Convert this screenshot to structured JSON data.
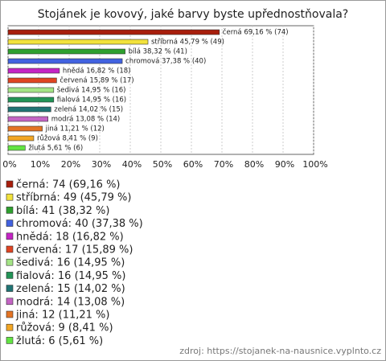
{
  "chart_data": {
    "type": "bar",
    "orientation": "horizontal",
    "title": "Stojánek je kovový, jaké barvy byste upřednostňovala?",
    "categories": [
      "černá",
      "stříbrná",
      "bílá",
      "chromová",
      "hnědá",
      "červená",
      "šedivá",
      "fialová",
      "zelená",
      "modrá",
      "jiná",
      "růžová",
      "žlutá"
    ],
    "values": [
      69.16,
      45.79,
      38.32,
      37.38,
      16.82,
      15.89,
      14.95,
      14.95,
      14.02,
      13.08,
      11.21,
      8.41,
      5.61
    ],
    "counts": [
      74,
      49,
      41,
      40,
      18,
      17,
      16,
      16,
      15,
      14,
      12,
      9,
      6
    ],
    "value_labels": [
      "černá 69,16 % (74)",
      "stříbrná 45,79 % (49)",
      "bílá 38,32 % (41)",
      "chromová 37,38 % (40)",
      "hnědá 16,82 % (18)",
      "červená 15,89 % (17)",
      "šedivá 14,95 % (16)",
      "fialová 14,95 % (16)",
      "zelená 14,02 % (15)",
      "modrá 13,08 % (14)",
      "jiná 11,21 % (12)",
      "růžová 8,41 % (9)",
      "žlutá 5,61 % (6)"
    ],
    "legend_labels": [
      "černá: 74 (69,16 %)",
      "stříbrná: 49 (45,79 %)",
      "bílá: 41 (38,32 %)",
      "chromová: 40 (37,38 %)",
      "hnědá: 18 (16,82 %)",
      "červená: 17 (15,89 %)",
      "šedivá: 16 (14,95 %)",
      "fialová: 16 (14,95 %)",
      "zelená: 15 (14,02 %)",
      "modrá: 14 (13,08 %)",
      "jiná: 12 (11,21 %)",
      "růžová: 9 (8,41 %)",
      "žlutá: 6 (5,61 %)"
    ],
    "colors": [
      "#a81e0c",
      "#f2e23c",
      "#2ea02e",
      "#4262e0",
      "#c424c4",
      "#e04422",
      "#a4e486",
      "#229456",
      "#207474",
      "#c464c4",
      "#e47424",
      "#f2a624",
      "#62e442"
    ],
    "xlim": [
      0,
      100
    ],
    "xticks": [
      {
        "value": 0,
        "label": "0%"
      },
      {
        "value": 10,
        "label": "10%"
      },
      {
        "value": 20,
        "label": "20%"
      },
      {
        "value": 30,
        "label": "30%"
      },
      {
        "value": 40,
        "label": "40%"
      },
      {
        "value": 50,
        "label": "50%"
      },
      {
        "value": 60,
        "label": "60%"
      },
      {
        "value": 70,
        "label": "70%"
      },
      {
        "value": 80,
        "label": "80%"
      },
      {
        "value": 90,
        "label": "90%"
      },
      {
        "value": 100,
        "label": "100%"
      }
    ],
    "grid": true,
    "source": "zdroj: https://stojanek-na-nausnice.vyplnto.cz"
  }
}
